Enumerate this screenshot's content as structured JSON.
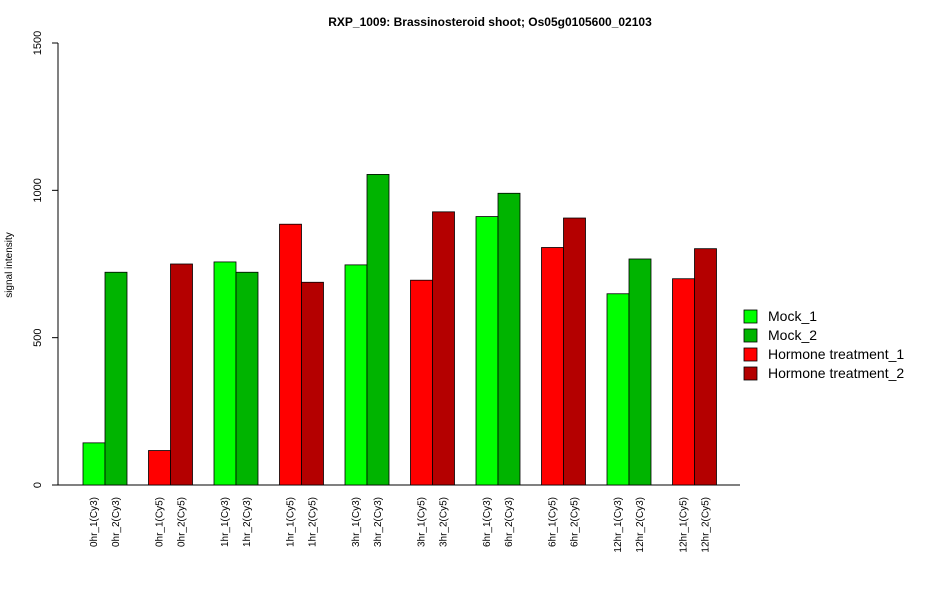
{
  "chart_data": {
    "type": "bar",
    "title": "RXP_1009: Brassinosteroid shoot; Os05g0105600_02103",
    "xlabel": "",
    "ylabel": "signal intensity",
    "ylim": [
      0,
      1500
    ],
    "yticks": [
      0,
      500,
      1000,
      1500
    ],
    "grid": false,
    "legend_position": "right",
    "groups": [
      {
        "bars": [
          {
            "label": "0hr_1(Cy3)",
            "value": 143,
            "series": "Mock_1"
          },
          {
            "label": "0hr_2(Cy3)",
            "value": 722,
            "series": "Mock_2"
          }
        ]
      },
      {
        "bars": [
          {
            "label": "0hr_1(Cy5)",
            "value": 117,
            "series": "Hormone treatment_1"
          },
          {
            "label": "0hr_2(Cy5)",
            "value": 750,
            "series": "Hormone treatment_2"
          }
        ]
      },
      {
        "bars": [
          {
            "label": "1hr_1(Cy3)",
            "value": 757,
            "series": "Mock_1"
          },
          {
            "label": "1hr_2(Cy3)",
            "value": 722,
            "series": "Mock_2"
          }
        ]
      },
      {
        "bars": [
          {
            "label": "1hr_1(Cy5)",
            "value": 885,
            "series": "Hormone treatment_1"
          },
          {
            "label": "1hr_2(Cy5)",
            "value": 688,
            "series": "Hormone treatment_2"
          }
        ]
      },
      {
        "bars": [
          {
            "label": "3hr_1(Cy3)",
            "value": 747,
            "series": "Mock_1"
          },
          {
            "label": "3hr_2(Cy3)",
            "value": 1054,
            "series": "Mock_2"
          }
        ]
      },
      {
        "bars": [
          {
            "label": "3hr_1(Cy5)",
            "value": 695,
            "series": "Hormone treatment_1"
          },
          {
            "label": "3hr_2(Cy5)",
            "value": 927,
            "series": "Hormone treatment_2"
          }
        ]
      },
      {
        "bars": [
          {
            "label": "6hr_1(Cy3)",
            "value": 911,
            "series": "Mock_1"
          },
          {
            "label": "6hr_2(Cy3)",
            "value": 990,
            "series": "Mock_2"
          }
        ]
      },
      {
        "bars": [
          {
            "label": "6hr_1(Cy5)",
            "value": 806,
            "series": "Hormone treatment_1"
          },
          {
            "label": "6hr_2(Cy5)",
            "value": 906,
            "series": "Hormone treatment_2"
          }
        ]
      },
      {
        "bars": [
          {
            "label": "12hr_1(Cy3)",
            "value": 649,
            "series": "Mock_1"
          },
          {
            "label": "12hr_2(Cy3)",
            "value": 767,
            "series": "Mock_2"
          }
        ]
      },
      {
        "bars": [
          {
            "label": "12hr_1(Cy5)",
            "value": 700,
            "series": "Hormone treatment_1"
          },
          {
            "label": "12hr_2(Cy5)",
            "value": 802,
            "series": "Hormone treatment_2"
          }
        ]
      }
    ],
    "legend": [
      {
        "name": "Mock_1",
        "color": "#00ff00"
      },
      {
        "name": "Mock_2",
        "color": "#00b400"
      },
      {
        "name": "Hormone treatment_1",
        "color": "#ff0000"
      },
      {
        "name": "Hormone treatment_2",
        "color": "#b40000"
      }
    ]
  }
}
